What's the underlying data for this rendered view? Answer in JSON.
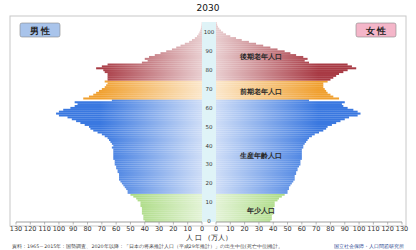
{
  "chart_data": {
    "type": "bar",
    "orientation": "horizontal",
    "title": "2030",
    "categories": [
      "0",
      null,
      null,
      null,
      null,
      null,
      null,
      null,
      null,
      null,
      "10",
      null,
      null,
      null,
      null,
      null,
      null,
      null,
      null,
      null,
      "20",
      null,
      null,
      null,
      null,
      null,
      null,
      null,
      null,
      null,
      "30",
      null,
      null,
      null,
      null,
      null,
      null,
      null,
      null,
      null,
      "40",
      null,
      null,
      null,
      null,
      null,
      null,
      null,
      null,
      null,
      "50",
      null,
      null,
      null,
      null,
      null,
      null,
      null,
      null,
      null,
      "60",
      null,
      null,
      null,
      null,
      null,
      null,
      null,
      null,
      null,
      "70",
      null,
      null,
      null,
      null,
      null,
      null,
      null,
      null,
      null,
      "80",
      null,
      null,
      null,
      null,
      null,
      null,
      null,
      null,
      null,
      "90",
      null,
      null,
      null,
      null,
      null,
      null,
      null,
      null,
      null,
      "100",
      null,
      null,
      null,
      null,
      null
    ],
    "series": [
      {
        "name": "男 性",
        "color": "#a9c4eb",
        "values": [
          40,
          41,
          41,
          41,
          42,
          42,
          42,
          42,
          43,
          43,
          43,
          45,
          46,
          48,
          50,
          52,
          52,
          53,
          54,
          55,
          56,
          57,
          58,
          58,
          58,
          58,
          59,
          59,
          60,
          60,
          61,
          61,
          61,
          62,
          62,
          62,
          62,
          62,
          62,
          63,
          62,
          63,
          64,
          65,
          66,
          68,
          70,
          73,
          76,
          78,
          79,
          82,
          85,
          88,
          91,
          94,
          100,
          102,
          100,
          97,
          92,
          89,
          87,
          89,
          63,
          83,
          79,
          76,
          74,
          72,
          70,
          68,
          67,
          66,
          68,
          66,
          66,
          66,
          66,
          68,
          69,
          74,
          70,
          66,
          42,
          38,
          40,
          37,
          33,
          29,
          25,
          21,
          18,
          15,
          12,
          9,
          7,
          5,
          3.5,
          2.5,
          1.8,
          1.2,
          0.8,
          0.5,
          0.3,
          0.2
        ]
      },
      {
        "name": "女 性",
        "color": "#f4b6c9",
        "values": [
          38,
          39,
          39,
          39,
          40,
          40,
          40,
          40,
          41,
          41,
          41,
          43,
          44,
          46,
          48,
          50,
          50,
          51,
          51,
          52,
          53,
          54,
          55,
          55,
          55,
          56,
          56,
          57,
          57,
          58,
          59,
          59,
          59,
          60,
          60,
          60,
          60,
          60,
          60,
          61,
          61,
          62,
          63,
          64,
          65,
          67,
          69,
          72,
          75,
          77,
          78,
          81,
          84,
          87,
          90,
          93,
          99,
          101,
          99,
          96,
          92,
          89,
          88,
          90,
          65,
          86,
          82,
          80,
          78,
          77,
          76,
          75,
          75,
          75,
          78,
          80,
          82,
          84,
          86,
          89,
          92,
          98,
          95,
          92,
          65,
          62,
          64,
          61,
          56,
          52,
          48,
          43,
          38,
          33,
          28,
          23,
          18,
          14,
          10,
          7,
          5,
          3.5,
          2.3,
          1.4,
          0.8,
          0.5
        ]
      }
    ],
    "age_groups": [
      {
        "label": "年少人口",
        "from": 0,
        "to": 14,
        "color": "#8fce5a"
      },
      {
        "label": "生産年齢人口",
        "from": 15,
        "to": 64,
        "color": "#3a78e0"
      },
      {
        "label": "前期老年人口",
        "from": 65,
        "to": 74,
        "color": "#f0a030"
      },
      {
        "label": "後期老年人口",
        "from": 75,
        "to": 105,
        "color": "#a83a44"
      }
    ],
    "xlim": [
      0,
      130
    ],
    "xticks": [
      0,
      10,
      20,
      30,
      40,
      50,
      60,
      70,
      80,
      90,
      100,
      110,
      120,
      130
    ],
    "xlabel": "人 口 （万人）",
    "grid": false,
    "source": "資料：1965～2015年：国勢調査、2020年以降：「日本の将来推計人口（平成29年推計）」の出生中位(死亡中位)推計。",
    "publisher": "国立社会保障・人口問題研究所"
  }
}
